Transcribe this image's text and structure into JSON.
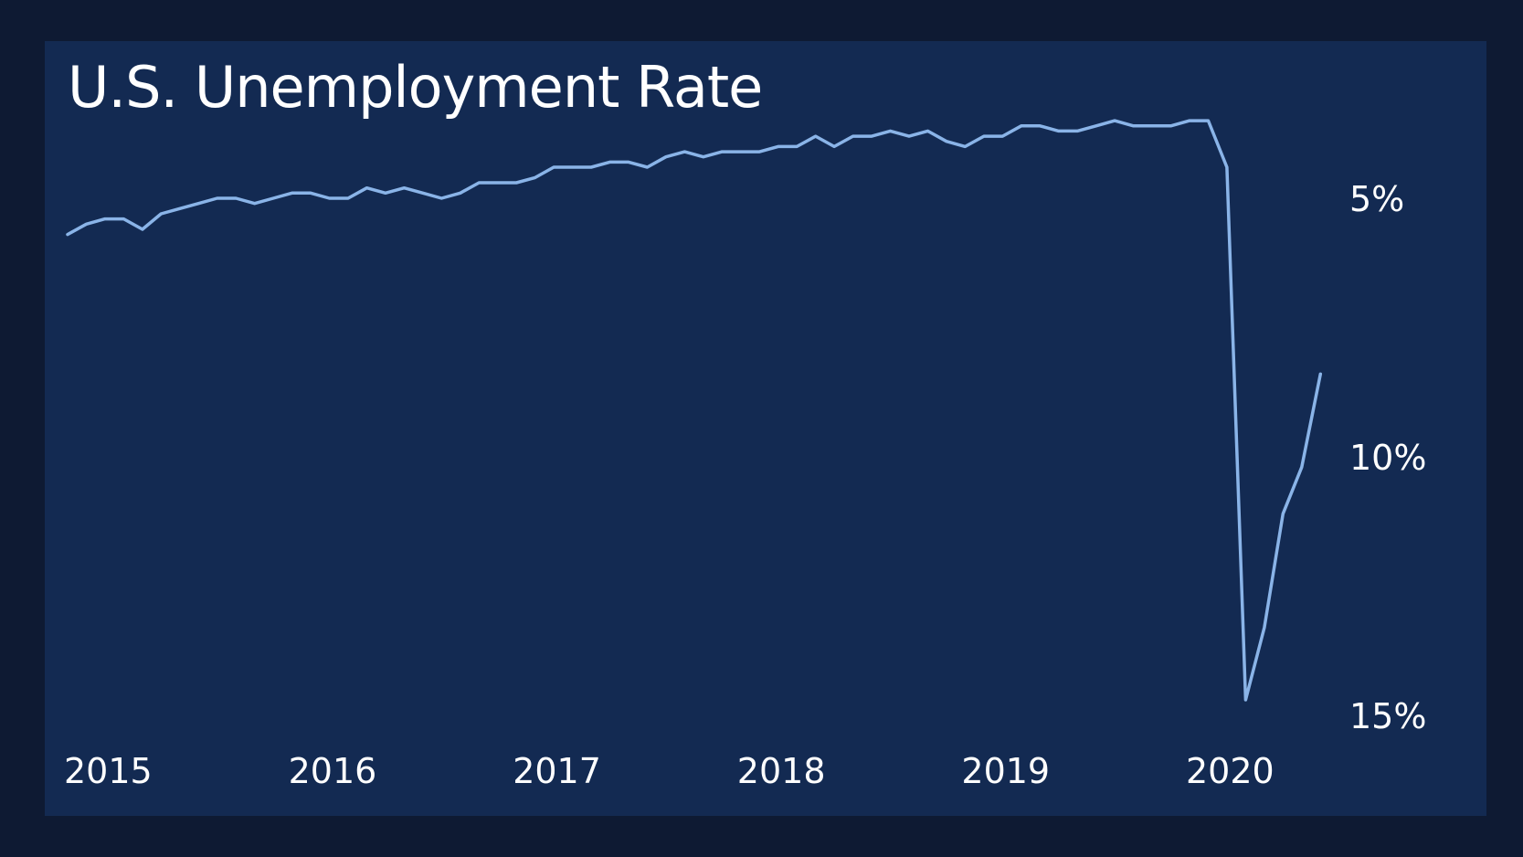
{
  "chart_data": {
    "type": "line",
    "title": "U.S. Unemployment Rate",
    "xlabel": "",
    "ylabel": "",
    "y_axis": {
      "inverted": true,
      "side": "right",
      "range": [
        3,
        15
      ],
      "ticks": [
        5,
        10,
        15
      ],
      "tick_labels": [
        "5%",
        "10%",
        "15%"
      ]
    },
    "x_axis": {
      "range": [
        "2015-01",
        "2020-09"
      ],
      "ticks": [
        "2015-01",
        "2016-01",
        "2017-01",
        "2018-01",
        "2019-01",
        "2020-01"
      ],
      "tick_labels": [
        "2015",
        "2016",
        "2017",
        "2018",
        "2019",
        "2020"
      ]
    },
    "grid": false,
    "legend": "none",
    "colors": {
      "background": "#0e1a33",
      "panel": "#132a52",
      "line": "#8ab4e8",
      "text": "#ffffff"
    },
    "series": [
      {
        "x": [
          "2015-01",
          "2015-02",
          "2015-03",
          "2015-04",
          "2015-05",
          "2015-06",
          "2015-07",
          "2015-08",
          "2015-09",
          "2015-10",
          "2015-11",
          "2015-12",
          "2016-01",
          "2016-02",
          "2016-03",
          "2016-04",
          "2016-05",
          "2016-06",
          "2016-07",
          "2016-08",
          "2016-09",
          "2016-10",
          "2016-11",
          "2016-12",
          "2017-01",
          "2017-02",
          "2017-03",
          "2017-04",
          "2017-05",
          "2017-06",
          "2017-07",
          "2017-08",
          "2017-09",
          "2017-10",
          "2017-11",
          "2017-12",
          "2018-01",
          "2018-02",
          "2018-03",
          "2018-04",
          "2018-05",
          "2018-06",
          "2018-07",
          "2018-08",
          "2018-09",
          "2018-10",
          "2018-11",
          "2018-12",
          "2019-01",
          "2019-02",
          "2019-03",
          "2019-04",
          "2019-05",
          "2019-06",
          "2019-07",
          "2019-08",
          "2019-09",
          "2019-10",
          "2019-11",
          "2019-12",
          "2020-01",
          "2020-02",
          "2020-03",
          "2020-04",
          "2020-05",
          "2020-06",
          "2020-07",
          "2020-08"
        ],
        "values": [
          5.7,
          5.5,
          5.4,
          5.4,
          5.6,
          5.3,
          5.2,
          5.1,
          5.0,
          5.0,
          5.1,
          5.0,
          4.9,
          4.9,
          5.0,
          5.0,
          4.8,
          4.9,
          4.8,
          4.9,
          5.0,
          4.9,
          4.7,
          4.7,
          4.7,
          4.6,
          4.4,
          4.4,
          4.4,
          4.3,
          4.3,
          4.4,
          4.2,
          4.1,
          4.2,
          4.1,
          4.1,
          4.1,
          4.0,
          4.0,
          3.8,
          4.0,
          3.8,
          3.8,
          3.7,
          3.8,
          3.7,
          3.9,
          4.0,
          3.8,
          3.8,
          3.6,
          3.6,
          3.7,
          3.7,
          3.6,
          3.5,
          3.6,
          3.6,
          3.6,
          3.5,
          3.5,
          4.4,
          14.7,
          13.3,
          11.1,
          10.2,
          8.4
        ]
      }
    ]
  }
}
